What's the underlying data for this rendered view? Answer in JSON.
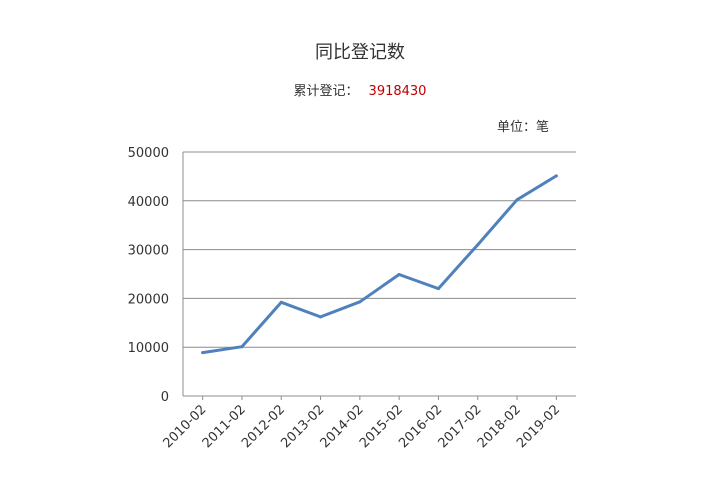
{
  "chart_data": {
    "type": "line",
    "title": "同比登记数",
    "subtitle_label": "累计登记：",
    "subtitle_value": "3918430",
    "unit": "单位：笔",
    "categories": [
      "2010-02",
      "2011-02",
      "2012-02",
      "2013-02",
      "2014-02",
      "2015-02",
      "2016-02",
      "2017-02",
      "2018-02",
      "2019-02"
    ],
    "values": [
      8900,
      10100,
      19200,
      16200,
      19300,
      24900,
      22000,
      31000,
      40200,
      45100
    ],
    "ylim": [
      0,
      50000
    ],
    "yticks": [
      "0",
      "10000",
      "20000",
      "30000",
      "40000",
      "50000"
    ],
    "grid": true,
    "line_color": "#4f81bd"
  }
}
